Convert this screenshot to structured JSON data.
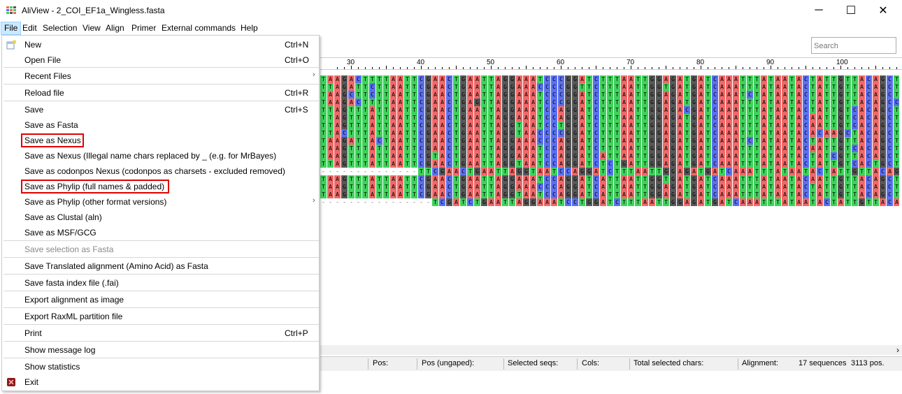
{
  "window": {
    "title": "AliView - 2_COI_EF1a_Wingless.fasta",
    "minimize_glyph": "─",
    "maximize_glyph": "☐",
    "close_glyph": "✕"
  },
  "menubar": {
    "items": [
      "File",
      "Edit",
      "Selection",
      "View",
      "Align",
      "Primer",
      "External commands",
      "Help"
    ],
    "active": "File"
  },
  "search": {
    "placeholder": "Search"
  },
  "ruler": {
    "labels": [
      "30",
      "40",
      "50",
      "60",
      "70",
      "80",
      "90",
      "100"
    ]
  },
  "file_menu": {
    "items": [
      {
        "label": "New",
        "shortcut": "Ctrl+N",
        "icon": "new-file-icon"
      },
      {
        "label": "Open File",
        "shortcut": "Ctrl+O"
      },
      {
        "label": "Recent Files",
        "submenu": true
      },
      {
        "label": "Reload file",
        "shortcut": "Ctrl+R"
      },
      {
        "label": "Save",
        "shortcut": "Ctrl+S"
      },
      {
        "label": "Save as Fasta"
      },
      {
        "label": "Save as Nexus",
        "highlighted": true
      },
      {
        "label": "Save as Nexus (Illegal name chars replaced by _ (e.g. for MrBayes)"
      },
      {
        "label": "Save as codonpos Nexus (codonpos as charsets - excluded removed)"
      },
      {
        "label": "Save as Phylip (full names & padded)",
        "highlighted": true
      },
      {
        "label": "Save as Phylip (other format versions)",
        "submenu": true
      },
      {
        "label": "Save as Clustal (aln)"
      },
      {
        "label": "Save as MSF/GCG"
      },
      {
        "label": "Save selection as Fasta",
        "disabled": true
      },
      {
        "label": "Save Translated alignment (Amino Acid) as Fasta"
      },
      {
        "label": "Save fasta index file (.fai)"
      },
      {
        "label": "Export alignment as image"
      },
      {
        "label": "Export RaxML partition file"
      },
      {
        "label": "Print",
        "shortcut": "Ctrl+P"
      },
      {
        "label": "Show message log"
      },
      {
        "label": "Show statistics"
      },
      {
        "label": "Exit",
        "icon": "exit-icon"
      }
    ],
    "submenu_glyph": "›"
  },
  "alignment": {
    "colors": {
      "A": "#f06868",
      "T": "#3ed25a",
      "G": "#585858",
      "C": "#5a70f0",
      "-": "#ffffff"
    },
    "sequences": [
      "TAAGACTTTTAATTCGAACTGAATTAGGAAATCCCGGATCTTTAATTGGAGATGATCAAATTTATAATACTATTGTTACAGCTAT",
      "TTAGATTCTTAATTCGAACTGAATTAGGAAACCCCGGTTCTTTAATTGGTGATGATCAAATTTATAATACTATTGTTACAGCTAT",
      "TAAGCTTCTTAATTCGAACTGAATTAGGAAATCCCGGATCTTTAATTGGAGATGATCAAATCTATAATACTATTGTTACAGCTAT",
      "TAAGACTTTTAATTCGAACTGAGTTAGGAAATCCCGGATCTTTAATTGGAGATGATCAAATTTATAATACTATTGTTACAGCCAT",
      "TTAGTTTATTAATTCGAACTGAATTAGGAAATCCAGGATCTTTAATTGGAGACGATCAAATTTATAATACTATTGTCACAGCTCA",
      "TTAGTTTATTAATTCGAACTGAATTAGGAAATCCAGGATCTTTAATTGGAGATGATCAAATTTATAATACAATTGTCACAGCTCA",
      "TTAGTTTATTAATTCGAACTGAATTAGGTAATCCTGGATCTTTAATTGGAGATGATCAAATTTATAATACAATTGTCACAGCTCA",
      "TTACTTTATTAATTCGAACTGAATTAGGTAACCCCGGATCTTTAATTGGAGATGATCAAATTTATAATACACAAGCTACAGCTCA",
      "TAAGATTACTAATTCGAACTGAATTAGGAAACCCAGGATCTTTAATTGGAGATGATCAAATCTATAATACTATTGTTACAGCTAT",
      "TAAGTTTATTAATTCGAACTGAATTAGGAAATCCAGGATCTTTAATTGGAGATGATCAAATTTATAATACAATTGTCACAGCTCA",
      "TAAGTTTATTAATTCGTACTGAATTAGGAAATCCAGGATCATTAATTGGAGATGATCAAATTTATAATACTATCGTTACAGCTCA",
      "TTAGTTTATTAATTCGAACTGAATTAGGTAATCCAGGATCTCTGATTGGAGATGATCAAATTTATAATACTATTGTCACTGCTCA",
      "--------------TTCGAACTGAATTAGGTAATCCAGGATCTTTAATTGGAGATGATCAAATTTATAATACTATTGTTACAGCTCA",
      "TAAGTTTATTAATTCGAACTGAATTAGGAAATCCAGGATCATTAATTGGTGATGATCAAATTTATAATACAATTGTTACAGCTCA",
      "TAAGTTTATTAATTCGAACTGAATTAGGAAACCCAGGATCATTAATTGGAGATGATCAAATTTATAATACTATTGTTACAGCTCA",
      "TAAGTTTATTAATTCGAACTGAATTAGGTAATCCAGGATCATTAATTGGAGATGATCAAATTTATAATACTATTGTTACAGCTCA",
      "----------------TCGATCTGAATTAGGAAATCCTGGATCTTTAATTGGAGATGATCAAATTTATAATACTATTGTTACAGCTCA"
    ]
  },
  "statusbar": {
    "pos": "Pos:",
    "pos_ungaped": "Pos (ungaped):",
    "selected_seqs": "Selected seqs:",
    "cols": "Cols:",
    "total_selected": "Total selected chars:",
    "alignment_label": "Alignment:",
    "sequences": "17 sequences",
    "positions": "3113 pos."
  },
  "hscroll": {
    "arrow_glyph": "›"
  }
}
